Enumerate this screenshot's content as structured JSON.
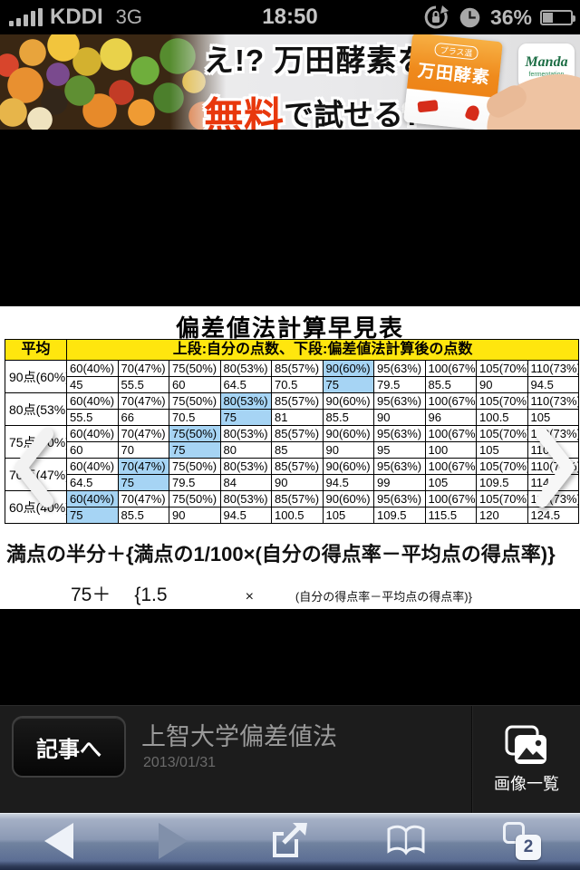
{
  "status_bar": {
    "carrier": "KDDI",
    "network": "3G",
    "time": "18:50",
    "battery_percent": "36%"
  },
  "ad": {
    "line1": "え!? 万田酵素を",
    "highlight": "無料",
    "line2_suffix": "で試せる?",
    "pouch_badge": "プラス温",
    "pouch_label": "万田酵素",
    "logo": "Manda",
    "logo_sub": "fermentation"
  },
  "content": {
    "title": "偏差値法計算早見表",
    "table": {
      "header_label": "平均",
      "header_desc": "上段:自分の点数、下段:偏差値法計算後の点数",
      "score_headers": [
        "60(40%)",
        "70(47%)",
        "75(50%)",
        "80(53%)",
        "85(57%)",
        "90(60%)",
        "95(63%)",
        "100(67%)",
        "105(70%)",
        "110(73%)"
      ],
      "rows": [
        {
          "label": "90点(60%)",
          "highlight_col": 5,
          "values": [
            "45",
            "55.5",
            "60",
            "64.5",
            "70.5",
            "75",
            "79.5",
            "85.5",
            "90",
            "94.5"
          ]
        },
        {
          "label": "80点(53%",
          "highlight_col": 3,
          "values": [
            "55.5",
            "66",
            "70.5",
            "75",
            "81",
            "85.5",
            "90",
            "96",
            "100.5",
            "105"
          ]
        },
        {
          "label": "75点(50%)",
          "highlight_col": 2,
          "values": [
            "60",
            "70",
            "75",
            "80",
            "85",
            "90",
            "95",
            "100",
            "105",
            "110"
          ]
        },
        {
          "label": "70点(47%)",
          "highlight_col": 1,
          "values": [
            "64.5",
            "75",
            "79.5",
            "84",
            "90",
            "94.5",
            "99",
            "105",
            "109.5",
            "114"
          ]
        },
        {
          "label": "60点(40%)",
          "highlight_col": 0,
          "values": [
            "75",
            "85.5",
            "90",
            "94.5",
            "100.5",
            "105",
            "109.5",
            "115.5",
            "120",
            "124.5"
          ]
        }
      ]
    },
    "formula_main": "満点の半分＋{満点の1/100×(自分の得点率－平均点の得点率)}",
    "formula_sub": {
      "base": "75＋",
      "brace": "{1.5",
      "times": "×",
      "tail": "(自分の得点率－平均点の得点率)}"
    }
  },
  "info_bar": {
    "button": "記事へ",
    "title": "上智大学偏差値法",
    "date": "2013/01/31",
    "gallery": "画像一覧"
  },
  "toolbar": {
    "tab_count": "2"
  },
  "colors": {
    "header_yellow": "#ffe60e",
    "highlight_blue": "#a6d4f4"
  }
}
